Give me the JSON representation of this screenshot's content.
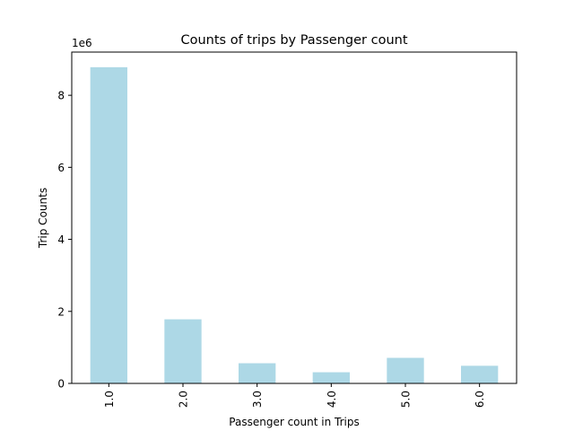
{
  "chart_data": {
    "type": "bar",
    "title": "Counts of trips by Passenger count",
    "xlabel": "Passenger count in Trips",
    "ylabel": "Trip Counts",
    "offset_label": "1e6",
    "categories": [
      "1.0",
      "2.0",
      "3.0",
      "4.0",
      "5.0",
      "6.0"
    ],
    "values": [
      8.78,
      1.78,
      0.56,
      0.31,
      0.71,
      0.49
    ],
    "value_scale": 1000000,
    "ylim": [
      0,
      9.2
    ],
    "yticks": [
      0,
      2,
      4,
      6,
      8
    ],
    "bar_color": "#add8e6",
    "grid": false,
    "legend": "none"
  }
}
